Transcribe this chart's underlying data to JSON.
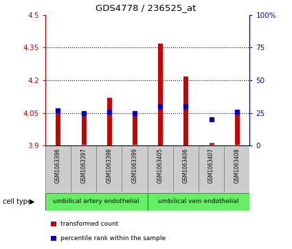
{
  "title": "GDS4778 / 236525_at",
  "samples": [
    "GSM1063396",
    "GSM1063397",
    "GSM1063398",
    "GSM1063399",
    "GSM1063405",
    "GSM1063406",
    "GSM1063407",
    "GSM1063408"
  ],
  "bar_tops": [
    4.07,
    4.052,
    4.12,
    4.06,
    4.37,
    4.22,
    3.915,
    4.06
  ],
  "bar_bottoms": [
    3.9,
    3.905,
    3.9,
    3.905,
    3.9,
    3.9,
    3.905,
    3.905
  ],
  "blue_dots_pct": [
    27,
    25,
    26,
    25,
    30,
    30,
    20,
    26
  ],
  "ylim_left": [
    3.9,
    4.5
  ],
  "ylim_right": [
    0,
    100
  ],
  "yticks_left": [
    3.9,
    4.05,
    4.2,
    4.35,
    4.5
  ],
  "yticks_right": [
    0,
    25,
    50,
    75,
    100
  ],
  "ytick_labels_left": [
    "3.9",
    "4.05",
    "4.2",
    "4.35",
    "4.5"
  ],
  "ytick_labels_right": [
    "0",
    "25",
    "50",
    "75",
    "100%"
  ],
  "bar_color": "#cc0000",
  "dot_color": "#0000cc",
  "groups": [
    {
      "label": "umbilical artery endothelial",
      "start": 0,
      "end": 3,
      "color": "#66ee66"
    },
    {
      "label": "umbilical vein endothelial",
      "start": 4,
      "end": 7,
      "color": "#66ee66"
    }
  ],
  "cell_type_label": "cell type",
  "legend_items": [
    {
      "label": "transformed count",
      "color": "#cc0000"
    },
    {
      "label": "percentile rank within the sample",
      "color": "#0000cc"
    }
  ],
  "sample_box_color": "#cccccc",
  "sample_box_edge": "#888888",
  "plot_bg": "#ffffff",
  "left_tick_color": "#cc0000",
  "right_tick_color": "#0000cc",
  "grid_linestyle": "dotted",
  "grid_color": "#000000",
  "grid_linewidth": 0.8
}
